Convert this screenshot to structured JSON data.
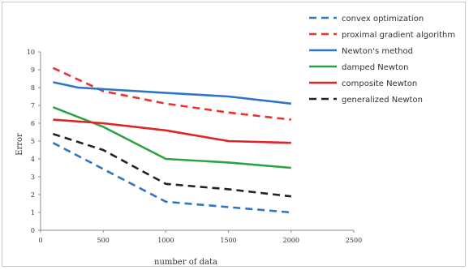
{
  "chart_data": {
    "type": "line",
    "title": "",
    "xlabel": "number of data",
    "ylabel": "Error",
    "xlim": [
      0,
      2500
    ],
    "ylim": [
      0,
      10
    ],
    "x_ticks": [
      0,
      500,
      1000,
      1500,
      2000,
      2500
    ],
    "y_ticks": [
      0,
      1,
      2,
      3,
      4,
      5,
      6,
      7,
      8,
      9,
      10
    ],
    "grid": false,
    "legend_position": "top-right",
    "series": [
      {
        "name": "convex optimization",
        "color": "#2e75c7",
        "dash": "dashed",
        "x": [
          100,
          1000,
          2000
        ],
        "values": [
          4.9,
          1.6,
          1.0
        ]
      },
      {
        "name": "proximal gradient algorithm",
        "color": "#e8332f",
        "dash": "dashed",
        "x": [
          100,
          500,
          1000,
          1500,
          2000
        ],
        "values": [
          9.1,
          7.8,
          7.1,
          6.6,
          6.2
        ]
      },
      {
        "name": "Newton's method",
        "color": "#2e75c7",
        "dash": "solid",
        "x": [
          100,
          300,
          1000,
          1500,
          2000
        ],
        "values": [
          8.3,
          8.0,
          7.7,
          7.5,
          7.1
        ]
      },
      {
        "name": "damped Newton",
        "color": "#2ba345",
        "dash": "solid",
        "x": [
          100,
          500,
          1000,
          1500,
          2000
        ],
        "values": [
          6.9,
          5.8,
          4.0,
          3.8,
          3.5
        ]
      },
      {
        "name": "composite Newton",
        "color": "#e02424",
        "dash": "solid",
        "x": [
          100,
          500,
          1000,
          1500,
          2000
        ],
        "values": [
          6.2,
          6.0,
          5.6,
          5.0,
          4.9
        ]
      },
      {
        "name": "generalized Newton",
        "color": "#222222",
        "dash": "dashed",
        "x": [
          100,
          500,
          1000,
          1500,
          2000
        ],
        "values": [
          5.4,
          4.5,
          2.6,
          2.3,
          1.9
        ]
      }
    ]
  }
}
